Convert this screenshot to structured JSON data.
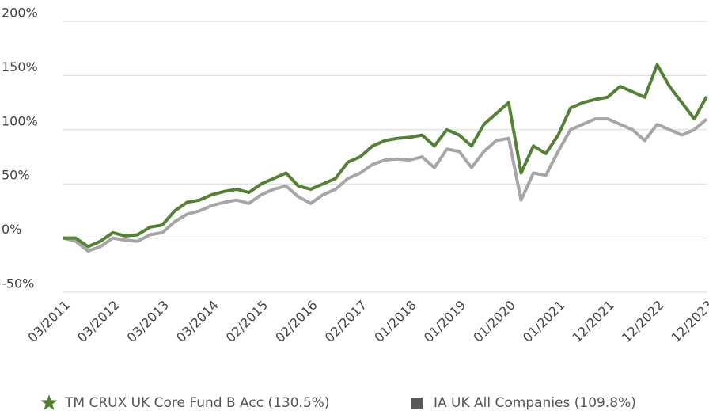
{
  "chart_data": {
    "type": "line",
    "categories": [
      "03/2011",
      null,
      null,
      null,
      "03/2012",
      null,
      null,
      null,
      "03/2013",
      null,
      null,
      null,
      "03/2014",
      null,
      null,
      null,
      "02/2015",
      null,
      null,
      null,
      "02/2016",
      null,
      null,
      null,
      "02/2017",
      null,
      null,
      null,
      "01/2018",
      null,
      null,
      null,
      "01/2019",
      null,
      null,
      null,
      "01/2020",
      null,
      null,
      null,
      "01/2021",
      null,
      null,
      null,
      "12/2021",
      null,
      null,
      null,
      "12/2022",
      null,
      null,
      null,
      "12/2023"
    ],
    "series": [
      {
        "name": "TM CRUX UK Core Fund B Acc (130.5%)",
        "color": "#538135",
        "values": [
          0,
          0,
          -8,
          -3,
          5,
          2,
          3,
          10,
          12,
          25,
          33,
          35,
          40,
          43,
          45,
          42,
          50,
          55,
          60,
          48,
          45,
          50,
          55,
          70,
          75,
          85,
          90,
          92,
          93,
          95,
          85,
          100,
          95,
          85,
          105,
          115,
          125,
          60,
          85,
          78,
          95,
          120,
          125,
          128,
          130,
          140,
          135,
          130,
          160,
          140,
          125,
          110,
          130.5
        ]
      },
      {
        "name": "IA UK All Companies (109.8%)",
        "color": "#a6a6a6",
        "values": [
          0,
          -3,
          -12,
          -8,
          0,
          -2,
          -3,
          3,
          5,
          15,
          22,
          25,
          30,
          33,
          35,
          32,
          40,
          45,
          48,
          38,
          32,
          40,
          45,
          55,
          60,
          68,
          72,
          73,
          72,
          75,
          65,
          82,
          80,
          65,
          80,
          90,
          92,
          35,
          60,
          58,
          80,
          100,
          105,
          110,
          110,
          105,
          100,
          90,
          105,
          100,
          95,
          100,
          109.8
        ]
      }
    ],
    "ylim": [
      -50,
      200
    ],
    "yticks": [
      {
        "value": -50,
        "label": "-50%"
      },
      {
        "value": 0,
        "label": "0%"
      },
      {
        "value": 50,
        "label": "50%"
      },
      {
        "value": 100,
        "label": "100%"
      },
      {
        "value": 150,
        "label": "150%"
      },
      {
        "value": 200,
        "label": "200%"
      }
    ],
    "grid": true
  }
}
